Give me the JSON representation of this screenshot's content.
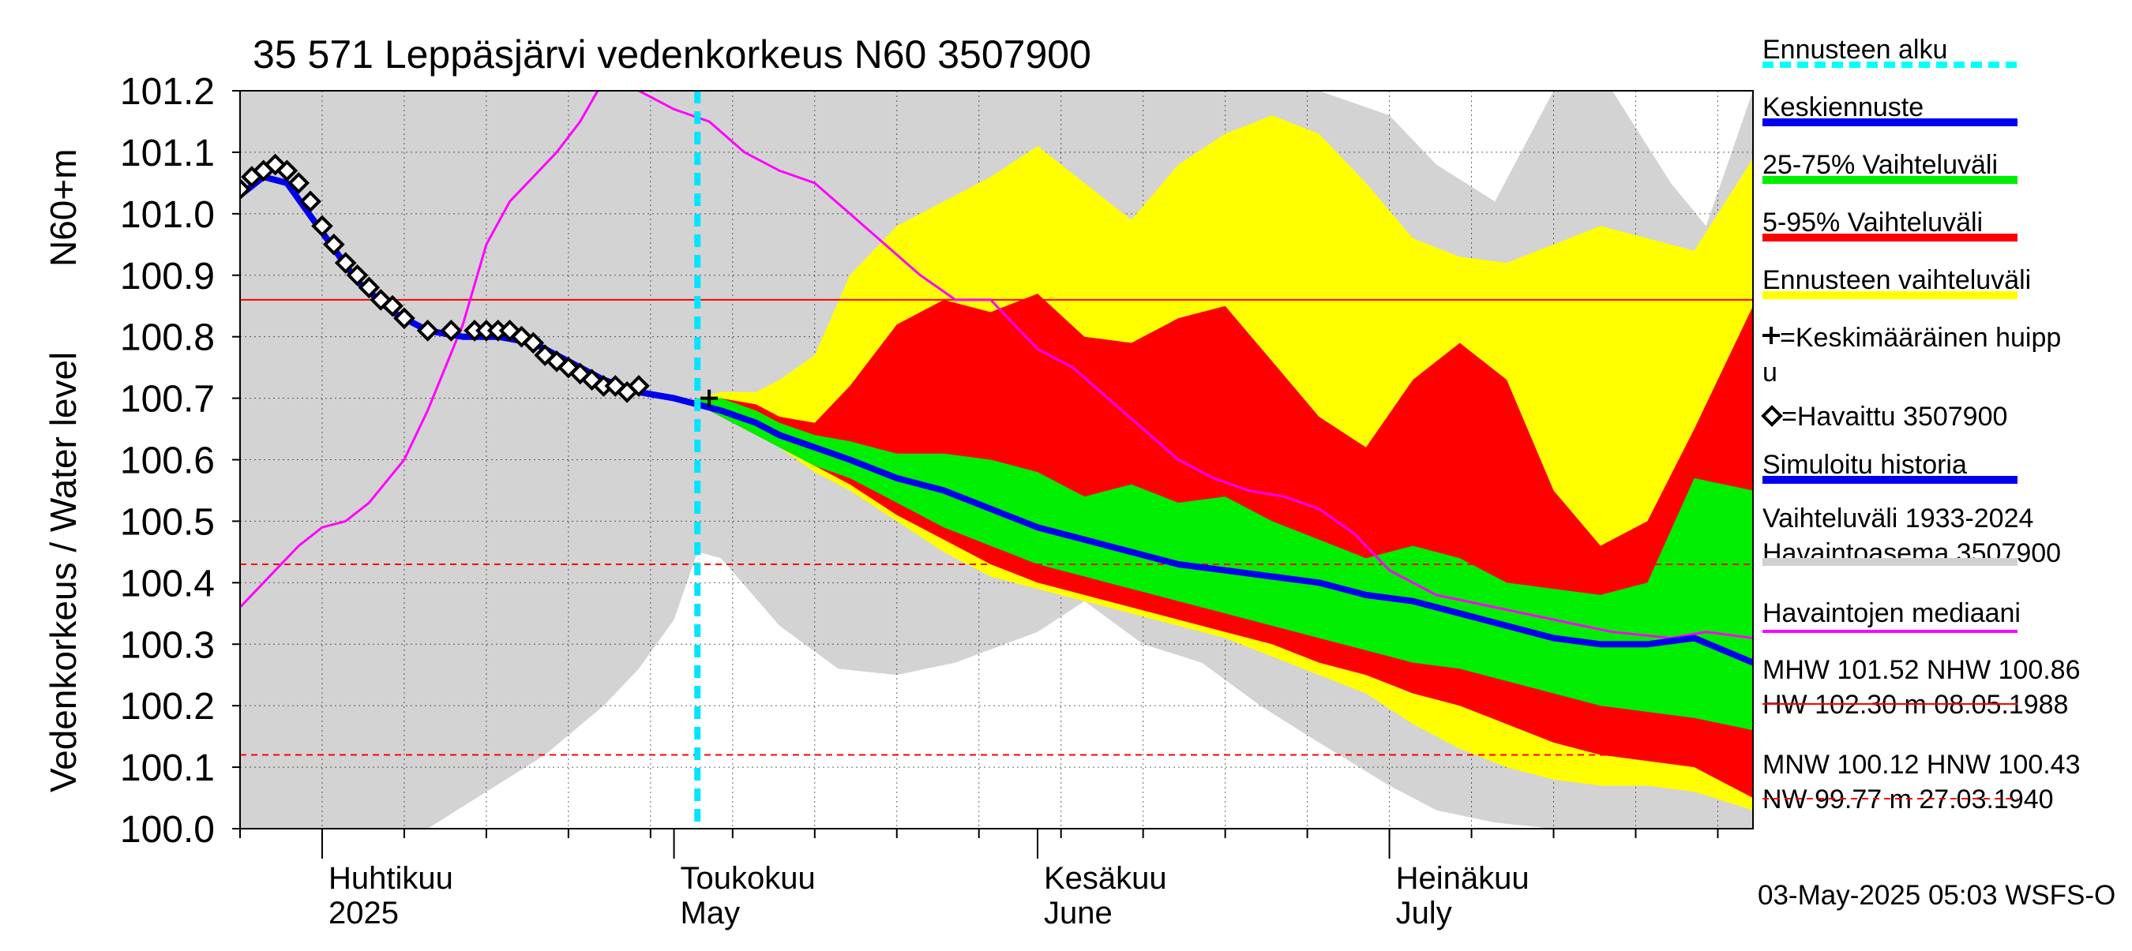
{
  "chart_data": {
    "type": "line",
    "title": "35 571 Leppäsjärvi vedenkorkeus N60 3507900",
    "ylabel_top": "N60+m",
    "ylabel": "Vedenkorkeus / Water level",
    "ylim": [
      100.0,
      101.2
    ],
    "yticks": [
      "100.0",
      "100.1",
      "100.2",
      "100.3",
      "100.4",
      "100.5",
      "100.6",
      "100.7",
      "100.8",
      "100.9",
      "101.0",
      "101.1",
      "101.2"
    ],
    "xlim": [
      "2025-03-25",
      "2025-08-01"
    ],
    "month_labels": [
      {
        "fi": "Huhtikuu",
        "en": "2025",
        "date": "2025-04-01"
      },
      {
        "fi": "Toukokuu",
        "en": "May",
        "date": "2025-05-01"
      },
      {
        "fi": "Kesäkuu",
        "en": "June",
        "date": "2025-06-01"
      },
      {
        "fi": "Heinäkuu",
        "en": "July",
        "date": "2025-07-01"
      }
    ],
    "forecast_start": "2025-05-03",
    "reference_lines": [
      {
        "name": "NHW",
        "value": 100.86,
        "style": "solid"
      },
      {
        "name": "HNW",
        "value": 100.43,
        "style": "dashed"
      },
      {
        "name": "MNW",
        "value": 100.12,
        "style": "dashed"
      }
    ],
    "historical_range": {
      "x": [
        "2025-03-25",
        "2025-03-30",
        "2025-04-05",
        "2025-04-10",
        "2025-04-15",
        "2025-04-20",
        "2025-04-25",
        "2025-04-28",
        "2025-05-01",
        "2025-05-03",
        "2025-05-05",
        "2025-05-10",
        "2025-05-15",
        "2025-05-20",
        "2025-05-25",
        "2025-06-01",
        "2025-06-05",
        "2025-06-10",
        "2025-06-15",
        "2025-06-20",
        "2025-06-25",
        "2025-07-01",
        "2025-07-05",
        "2025-07-10",
        "2025-07-15",
        "2025-07-20",
        "2025-07-25",
        "2025-07-28",
        "2025-08-01"
      ],
      "low": [
        100.0,
        100.0,
        100.0,
        100.0,
        100.06,
        100.12,
        100.2,
        100.26,
        100.34,
        100.45,
        100.44,
        100.33,
        100.26,
        100.25,
        100.27,
        100.32,
        100.37,
        100.3,
        100.27,
        100.2,
        100.14,
        100.07,
        100.03,
        100.01,
        100.0,
        100.0,
        100.0,
        100.0,
        100.0
      ],
      "high": [
        101.2,
        101.2,
        101.2,
        101.2,
        101.2,
        101.2,
        101.2,
        101.2,
        101.2,
        101.2,
        101.2,
        101.2,
        101.2,
        101.2,
        101.2,
        101.2,
        101.2,
        101.2,
        101.2,
        101.2,
        101.2,
        101.16,
        101.08,
        101.02,
        101.2,
        101.2,
        101.05,
        100.98,
        101.2
      ]
    },
    "forecast_x": [
      "2025-05-03",
      "2025-05-05",
      "2025-05-08",
      "2025-05-10",
      "2025-05-13",
      "2025-05-16",
      "2025-05-20",
      "2025-05-24",
      "2025-05-28",
      "2025-06-01",
      "2025-06-05",
      "2025-06-09",
      "2025-06-13",
      "2025-06-17",
      "2025-06-21",
      "2025-06-25",
      "2025-06-29",
      "2025-07-03",
      "2025-07-07",
      "2025-07-11",
      "2025-07-15",
      "2025-07-19",
      "2025-07-23",
      "2025-07-27",
      "2025-08-01"
    ],
    "series": [
      {
        "name": "Ennusteen vaihteluväli",
        "color": "#ffff00",
        "low": [
          100.69,
          100.67,
          100.64,
          100.62,
          100.58,
          100.55,
          100.5,
          100.45,
          100.41,
          100.39,
          100.37,
          100.35,
          100.33,
          100.31,
          100.28,
          100.25,
          100.22,
          100.17,
          100.13,
          100.1,
          100.08,
          100.07,
          100.07,
          100.06,
          100.03
        ],
        "high": [
          100.7,
          100.71,
          100.71,
          100.73,
          100.77,
          100.9,
          100.98,
          101.02,
          101.06,
          101.11,
          101.05,
          100.99,
          101.08,
          101.13,
          101.16,
          101.13,
          101.05,
          100.96,
          100.93,
          100.92,
          100.95,
          100.98,
          100.96,
          100.94,
          101.09
        ]
      },
      {
        "name": "5-95% Vaihteluväli",
        "color": "#ff0000",
        "low": [
          100.69,
          100.67,
          100.64,
          100.62,
          100.59,
          100.56,
          100.51,
          100.47,
          100.43,
          100.4,
          100.38,
          100.36,
          100.34,
          100.32,
          100.3,
          100.27,
          100.25,
          100.22,
          100.2,
          100.17,
          100.14,
          100.12,
          100.11,
          100.1,
          100.05
        ],
        "high": [
          100.7,
          100.7,
          100.69,
          100.67,
          100.66,
          100.72,
          100.82,
          100.86,
          100.84,
          100.87,
          100.8,
          100.79,
          100.83,
          100.85,
          100.76,
          100.67,
          100.62,
          100.73,
          100.79,
          100.73,
          100.55,
          100.46,
          100.5,
          100.65,
          100.85
        ]
      },
      {
        "name": "25-75% Vaihteluväli",
        "color": "#00ee00",
        "low": [
          100.69,
          100.67,
          100.64,
          100.62,
          100.59,
          100.57,
          100.53,
          100.49,
          100.46,
          100.43,
          100.41,
          100.39,
          100.37,
          100.35,
          100.33,
          100.31,
          100.29,
          100.27,
          100.26,
          100.24,
          100.22,
          100.2,
          100.19,
          100.18,
          100.16
        ],
        "high": [
          100.7,
          100.7,
          100.68,
          100.66,
          100.64,
          100.63,
          100.61,
          100.61,
          100.6,
          100.58,
          100.54,
          100.56,
          100.53,
          100.54,
          100.5,
          100.47,
          100.44,
          100.46,
          100.44,
          100.4,
          100.39,
          100.38,
          100.4,
          100.57,
          100.55
        ]
      },
      {
        "name": "Keskiennuste",
        "color": "#0000ee",
        "values": [
          100.69,
          100.68,
          100.66,
          100.64,
          100.62,
          100.6,
          100.57,
          100.55,
          100.52,
          100.49,
          100.47,
          100.45,
          100.43,
          100.42,
          100.41,
          100.4,
          100.38,
          100.37,
          100.35,
          100.33,
          100.31,
          100.3,
          100.3,
          100.31,
          100.27
        ]
      }
    ],
    "simulated_history": {
      "name": "Simuloitu historia",
      "color": "#0000ee",
      "x": [
        "2025-03-25",
        "2025-03-27",
        "2025-03-29",
        "2025-04-01",
        "2025-04-04",
        "2025-04-07",
        "2025-04-10",
        "2025-04-13",
        "2025-04-16",
        "2025-04-19",
        "2025-04-22",
        "2025-04-25",
        "2025-04-28",
        "2025-05-01",
        "2025-05-03"
      ],
      "values": [
        101.03,
        101.06,
        101.05,
        100.97,
        100.89,
        100.84,
        100.81,
        100.8,
        100.8,
        100.79,
        100.76,
        100.73,
        100.71,
        100.7,
        100.69
      ]
    },
    "observed": {
      "name": "Havaittu 3507900",
      "x": [
        "2025-03-25",
        "2025-03-26",
        "2025-03-27",
        "2025-03-28",
        "2025-03-29",
        "2025-03-30",
        "2025-03-31",
        "2025-04-01",
        "2025-04-02",
        "2025-04-03",
        "2025-04-04",
        "2025-04-05",
        "2025-04-06",
        "2025-04-07",
        "2025-04-08",
        "2025-04-10",
        "2025-04-12",
        "2025-04-14",
        "2025-04-15",
        "2025-04-16",
        "2025-04-17",
        "2025-04-18",
        "2025-04-19",
        "2025-04-20",
        "2025-04-21",
        "2025-04-22",
        "2025-04-23",
        "2025-04-24",
        "2025-04-25",
        "2025-04-26",
        "2025-04-27",
        "2025-04-28"
      ],
      "values": [
        101.04,
        101.06,
        101.07,
        101.08,
        101.07,
        101.05,
        101.02,
        100.98,
        100.95,
        100.92,
        100.9,
        100.88,
        100.86,
        100.85,
        100.83,
        100.81,
        100.81,
        100.81,
        100.81,
        100.81,
        100.81,
        100.8,
        100.79,
        100.77,
        100.76,
        100.75,
        100.74,
        100.73,
        100.72,
        100.72,
        100.71,
        100.72
      ]
    },
    "average_peak": {
      "name": "Keskimääräinen huippu",
      "x": "2025-05-04",
      "value": 100.7
    },
    "median": {
      "name": "Havaintojen mediaani",
      "color": "#ff00ff",
      "x": [
        "2025-03-25",
        "2025-03-27",
        "2025-03-30",
        "2025-04-01",
        "2025-04-03",
        "2025-04-05",
        "2025-04-08",
        "2025-04-10",
        "2025-04-13",
        "2025-04-15",
        "2025-04-17",
        "2025-04-19",
        "2025-04-21",
        "2025-04-23",
        "2025-04-26",
        "2025-04-28",
        "2025-05-01",
        "2025-05-04",
        "2025-05-07",
        "2025-05-10",
        "2025-05-13",
        "2025-05-16",
        "2025-05-19",
        "2025-05-22",
        "2025-05-25",
        "2025-05-28",
        "2025-06-01",
        "2025-06-04",
        "2025-06-07",
        "2025-06-10",
        "2025-06-13",
        "2025-06-16",
        "2025-06-19",
        "2025-06-22",
        "2025-06-25",
        "2025-06-28",
        "2025-07-01",
        "2025-07-05",
        "2025-07-10",
        "2025-07-15",
        "2025-07-20",
        "2025-07-25",
        "2025-07-28",
        "2025-08-01"
      ],
      "values": [
        100.36,
        100.4,
        100.46,
        100.49,
        100.5,
        100.53,
        100.6,
        100.68,
        100.82,
        100.95,
        101.02,
        101.06,
        101.1,
        101.15,
        101.25,
        101.2,
        101.17,
        101.15,
        101.1,
        101.07,
        101.05,
        101.0,
        100.95,
        100.9,
        100.86,
        100.86,
        100.78,
        100.75,
        100.7,
        100.65,
        100.6,
        100.57,
        100.55,
        100.54,
        100.52,
        100.48,
        100.42,
        100.38,
        100.36,
        100.34,
        100.32,
        100.31,
        100.32,
        100.31
      ]
    },
    "legend": {
      "items": [
        {
          "label": "Ennusteen alku",
          "color": "#00ffff",
          "style": "dotted"
        },
        {
          "label": "Keskiennuste",
          "color": "#0000ee",
          "style": "solid"
        },
        {
          "label": "25-75% Vaihteluväli",
          "color": "#00ee00",
          "style": "solid"
        },
        {
          "label": "5-95% Vaihteluväli",
          "color": "#ff0000",
          "style": "solid"
        },
        {
          "label": "Ennusteen vaihteluväli",
          "color": "#ffff00",
          "style": "solid"
        },
        {
          "label": "=Keskimääräinen huipp",
          "label2": "u",
          "marker": "plus"
        },
        {
          "label": "=Havaittu 3507900",
          "marker": "diamond"
        },
        {
          "label": "Simuloitu historia",
          "color": "#0000ee",
          "style": "solid"
        },
        {
          "label": "Vaihteluväli 1933-2024",
          "label2": " Havaintoasema 3507900",
          "color": "#d0d0d0",
          "style": "solid"
        },
        {
          "label": "Havaintojen mediaani",
          "color": "#ff00ff",
          "style": "thin"
        },
        {
          "label": "MHW 101.52 NHW 100.86",
          "label2": "HW 102.30 m 08.05.1988",
          "color": "#ff0000",
          "style": "thin"
        },
        {
          "label": "MNW 100.12 HNW 100.43",
          "label2": "NW  99.77 m 27.03.1940",
          "color": "#ff0000",
          "style": "dashed"
        }
      ]
    },
    "footer": "03-May-2025 05:03 WSFS-O",
    "grid": true
  }
}
